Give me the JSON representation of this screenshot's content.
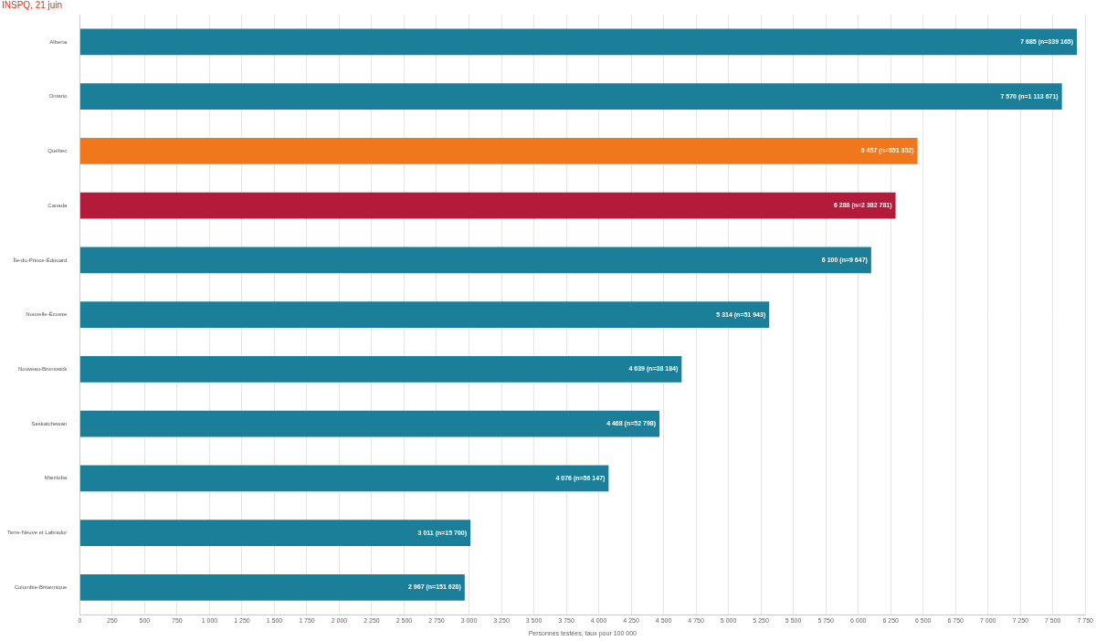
{
  "chart_data": {
    "type": "bar",
    "orientation": "horizontal",
    "title": "INSPQ, 21 juin",
    "x_label": "Personnes testées, taux pour 100 000",
    "categories": [
      "Alberta",
      "Ontario",
      "Québec",
      "Canada",
      "Île-du-Prince-Édouard",
      "Nouvelle-Écosse",
      "Nouveau-Brunswick",
      "Saskatchewan",
      "Manitoba",
      "Terre-Neuve et Labrador",
      "Colombie-Britannique"
    ],
    "values": [
      7685,
      7570,
      6457,
      6288,
      6100,
      5314,
      4639,
      4468,
      4076,
      3011,
      2967
    ],
    "value_labels": [
      "7 685 (n=339 165)",
      "7 570 (n=1 113 671)",
      "6 457 (n=551 352)",
      "6 288 (n=2 382 781)",
      "6 100 (n=9 647)",
      "5 314 (n=51 943)",
      "4 639 (n=38 184)",
      "4 468 (n=52 798)",
      "4 076 (n=56 147)",
      "3 011 (n=15 700)",
      "2 967 (n=151 628)"
    ],
    "colors": [
      "#1b7f9a",
      "#1b7f9a",
      "#f0771b",
      "#b41b3a",
      "#1b7f9a",
      "#1b7f9a",
      "#1b7f9a",
      "#1b7f9a",
      "#1b7f9a",
      "#1b7f9a",
      "#1b7f9a"
    ],
    "xlim": [
      0,
      7750
    ],
    "xticks": [
      0,
      250,
      500,
      750,
      {
        "value": 1000,
        "label": "1 000"
      },
      {
        "value": 1250,
        "label": "1 250"
      },
      {
        "value": 1500,
        "label": "1 500"
      },
      {
        "value": 1750,
        "label": "1 750"
      },
      {
        "value": 2000,
        "label": "2 000"
      },
      {
        "value": 2250,
        "label": "2 250"
      },
      {
        "value": 2500,
        "label": "2 500"
      },
      {
        "value": 2750,
        "label": "2 750"
      },
      {
        "value": 3000,
        "label": "3 000"
      },
      {
        "value": 3250,
        "label": "3 250"
      },
      {
        "value": 3500,
        "label": "3 500"
      },
      {
        "value": 3750,
        "label": "3 750"
      },
      {
        "value": 4000,
        "label": "4 000"
      },
      {
        "value": 4250,
        "label": "4 250"
      },
      {
        "value": 4500,
        "label": "4 500"
      },
      {
        "value": 4750,
        "label": "4 750"
      },
      {
        "value": 5000,
        "label": "5 000"
      },
      {
        "value": 5250,
        "label": "5 250"
      },
      {
        "value": 5500,
        "label": "5 500"
      },
      {
        "value": 5750,
        "label": "5 750"
      },
      {
        "value": 6000,
        "label": "6 000"
      },
      {
        "value": 6250,
        "label": "6 250"
      },
      {
        "value": 6500,
        "label": "6 500"
      },
      {
        "value": 6750,
        "label": "6 750"
      },
      {
        "value": 7000,
        "label": "7 000"
      },
      {
        "value": 7250,
        "label": "7 250"
      },
      {
        "value": 7500,
        "label": "7 500"
      },
      {
        "value": 7750,
        "label": "7 750"
      }
    ],
    "grid": true,
    "data_labels": true
  }
}
